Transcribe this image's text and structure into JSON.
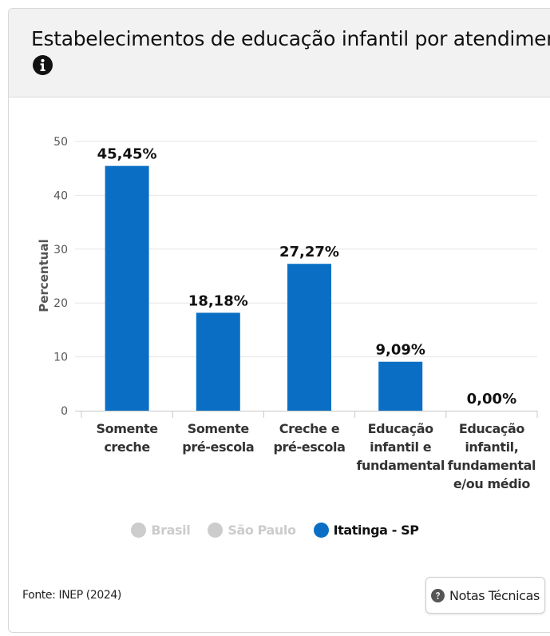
{
  "title": "Estabelecimentos de educação infantil por atendimento",
  "icons": {
    "info": "info-icon",
    "notes": "question-circle-icon"
  },
  "colors": {
    "series": "#0a6fc4",
    "inactive": "#cccccc",
    "grid": "#e6e6e6",
    "axis_text": "#555555"
  },
  "chart_data": {
    "type": "bar",
    "categories": [
      [
        "Somente",
        "creche"
      ],
      [
        "Somente",
        "pré-escola"
      ],
      [
        "Creche e",
        "pré-escola"
      ],
      [
        "Educação",
        "infantil e",
        "fundamental"
      ],
      [
        "Educação",
        "infantil,",
        "fundamental",
        "e/ou médio"
      ]
    ],
    "series": [
      {
        "name": "Itatinga - SP",
        "values": [
          45.45,
          18.18,
          27.27,
          9.09,
          0.0
        ]
      }
    ],
    "data_labels": [
      "45,45%",
      "18,18%",
      "27,27%",
      "9,09%",
      "0,00%"
    ],
    "ylabel": "Percentual",
    "ylim": [
      0,
      50
    ],
    "yticks": [
      0,
      10,
      20,
      30,
      40,
      50
    ],
    "grid": true,
    "legend": [
      {
        "name": "Brasil",
        "active": false
      },
      {
        "name": "São Paulo",
        "active": false
      },
      {
        "name": "Itatinga - SP",
        "active": true
      }
    ],
    "legend_position": "bottom"
  },
  "footer": {
    "source": "Fonte: INEP (2024)",
    "notes_button": "Notas Técnicas"
  }
}
